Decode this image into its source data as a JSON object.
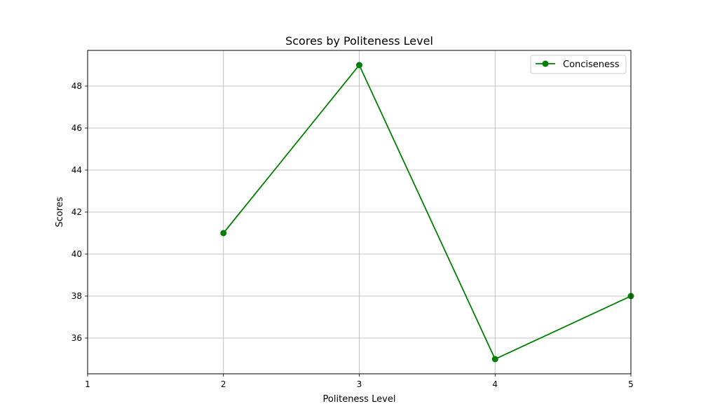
{
  "chart_data": {
    "type": "line",
    "title": "Scores by Politeness Level",
    "xlabel": "Politeness Level",
    "ylabel": "Scores",
    "x": [
      2,
      3,
      4,
      5
    ],
    "series": [
      {
        "name": "Conciseness",
        "values": [
          41,
          49,
          35,
          38
        ],
        "color": "#008000",
        "marker": "circle"
      }
    ],
    "xlim": [
      1,
      5
    ],
    "ylim": [
      34.3,
      49.7
    ],
    "xticks": [
      1,
      2,
      3,
      4,
      5
    ],
    "yticks": [
      36,
      38,
      40,
      42,
      44,
      46,
      48
    ],
    "grid": true,
    "legend_position": "top-right"
  },
  "colors": {
    "series": "#008000",
    "grid": "#b0b0b0",
    "axis": "#000000",
    "background": "#ffffff"
  }
}
